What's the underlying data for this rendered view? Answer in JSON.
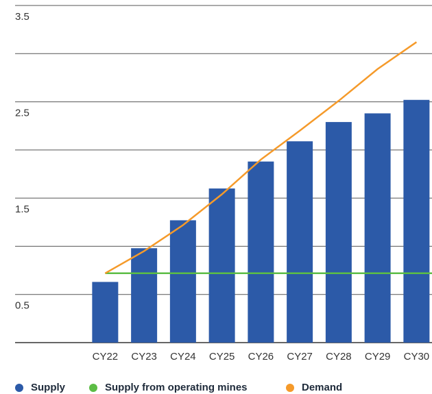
{
  "chart_data": {
    "type": "bar_line",
    "categories": [
      "CY22",
      "CY23",
      "CY24",
      "CY25",
      "CY26",
      "CY27",
      "CY28",
      "CY29",
      "CY30"
    ],
    "series": [
      {
        "name": "Supply",
        "type": "bar",
        "color": "#2c5aa8",
        "values": [
          0.63,
          0.98,
          1.27,
          1.6,
          1.88,
          2.09,
          2.29,
          2.38,
          2.52
        ]
      },
      {
        "name": "Supply from operating mines",
        "type": "line",
        "color": "#5cbd45",
        "values": [
          0.72,
          0.72,
          0.72,
          0.72,
          0.72,
          0.72,
          0.72,
          0.72,
          0.72
        ]
      },
      {
        "name": "Demand",
        "type": "line",
        "color": "#f59a2a",
        "values": [
          0.72,
          0.95,
          1.22,
          1.54,
          1.9,
          2.2,
          2.51,
          2.84,
          3.12
        ]
      }
    ],
    "ylim": [
      0,
      3.5
    ],
    "yticks": [
      0.5,
      1.5,
      2.5,
      3.5
    ],
    "minor_yticks": [
      1,
      2,
      3
    ],
    "grid": true
  }
}
